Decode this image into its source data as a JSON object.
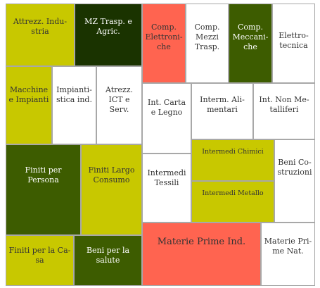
{
  "chart_data": {
    "type": "treemap",
    "colors": {
      "olive": "#c8c800",
      "dark_green": "#1a3300",
      "mid_green": "#3d5c00",
      "red": "#ff6450",
      "white": "#ffffff"
    },
    "tiles": [
      {
        "label": "Attrezz. Indu­stria",
        "color": "olive",
        "text": "#333333"
      },
      {
        "label": "MZ Trasp. e Agric.",
        "color": "dark_green",
        "text": "#ffffff"
      },
      {
        "label": "Comp. Elettroni­che",
        "color": "red",
        "text": "#333333"
      },
      {
        "label": "Comp. Mezzi Tra­sp.",
        "color": "white",
        "text": "#333333"
      },
      {
        "label": "Comp. Meccani­che",
        "color": "mid_green",
        "text": "#ffffff"
      },
      {
        "label": "Elettro­tecnica",
        "color": "white",
        "text": "#333333"
      },
      {
        "label": "Macchine e Impianti",
        "color": "olive",
        "text": "#333333"
      },
      {
        "label": "Impianti­stica ind.",
        "color": "white",
        "text": "#333333"
      },
      {
        "label": "Atrezz. ICT e Serv.",
        "color": "white",
        "text": "#333333"
      },
      {
        "label": "Int. Carta e Legno",
        "color": "white",
        "text": "#333333"
      },
      {
        "label": "Interm. Ali­mentari",
        "color": "white",
        "text": "#333333"
      },
      {
        "label": "Int. Non Me­talliferi",
        "color": "white",
        "text": "#333333"
      },
      {
        "label": "Finiti per Persona",
        "color": "mid_green",
        "text": "#ffffff"
      },
      {
        "label": "Finiti Largo Consumo",
        "color": "olive",
        "text": "#333333"
      },
      {
        "label": "Intermedi Tessili",
        "color": "white",
        "text": "#333333"
      },
      {
        "label": "Intermedi Chimici",
        "color": "olive",
        "text": "#333333"
      },
      {
        "label": "Intermedi Metallo",
        "color": "olive",
        "text": "#333333"
      },
      {
        "label": "Beni Co­struzioni",
        "color": "white",
        "text": "#333333"
      },
      {
        "label": "Finiti per la Ca­sa",
        "color": "olive",
        "text": "#333333"
      },
      {
        "label": "Beni per la salu­te",
        "color": "mid_green",
        "text": "#ffffff"
      },
      {
        "label": "Materie Prime Ind.",
        "color": "red",
        "text": "#333333"
      },
      {
        "label": "Materie Pri­me Nat.",
        "color": "white",
        "text": "#333333"
      }
    ]
  }
}
